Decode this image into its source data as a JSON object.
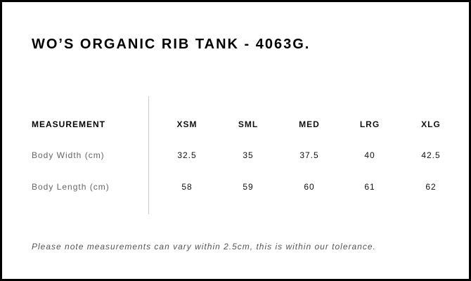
{
  "title": "WO’S ORGANIC RIB TANK - 4063G.",
  "table": {
    "header": "MEASUREMENT",
    "sizes": [
      "XSM",
      "SML",
      "MED",
      "LRG",
      "XLG"
    ],
    "rows": [
      {
        "label": "Body Width (cm)",
        "values": [
          "32.5",
          "35",
          "37.5",
          "40",
          "42.5"
        ]
      },
      {
        "label": "Body Length (cm)",
        "values": [
          "58",
          "59",
          "60",
          "61",
          "62"
        ]
      }
    ]
  },
  "note": "Please note measurements can vary within 2.5cm, this is within our tolerance."
}
